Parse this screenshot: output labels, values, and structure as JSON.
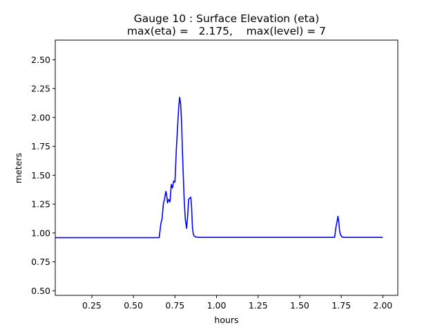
{
  "chart_data": {
    "type": "line",
    "title": "Gauge 10 : Surface Elevation (eta)",
    "subtitle": "max(eta) =   2.175,    max(level) = 7",
    "xlabel": "hours",
    "ylabel": "meters",
    "xlim": [
      0.03,
      2.09
    ],
    "ylim": [
      0.46,
      2.67
    ],
    "xticks": [
      0.25,
      0.5,
      0.75,
      1.0,
      1.25,
      1.5,
      1.75,
      2.0
    ],
    "xtick_labels": [
      "0.25",
      "0.50",
      "0.75",
      "1.00",
      "1.25",
      "1.50",
      "1.75",
      "2.00"
    ],
    "yticks": [
      0.5,
      0.75,
      1.0,
      1.25,
      1.5,
      1.75,
      2.0,
      2.25,
      2.5
    ],
    "ytick_labels": [
      "0.50",
      "0.75",
      "1.00",
      "1.25",
      "1.50",
      "1.75",
      "2.00",
      "2.25",
      "2.50"
    ],
    "grid": false,
    "series": [
      {
        "color": "#0000ff",
        "x": [
          0.03,
          0.3,
          0.6,
          0.655,
          0.665,
          0.672,
          0.68,
          0.688,
          0.695,
          0.7,
          0.705,
          0.712,
          0.72,
          0.728,
          0.735,
          0.742,
          0.75,
          0.758,
          0.765,
          0.772,
          0.778,
          0.784,
          0.79,
          0.795,
          0.8,
          0.805,
          0.812,
          0.82,
          0.826,
          0.832,
          0.838,
          0.845,
          0.85,
          0.855,
          0.86,
          0.865,
          0.875,
          0.9,
          1.0,
          1.25,
          1.5,
          1.71,
          1.718,
          1.725,
          1.73,
          1.735,
          1.74,
          1.745,
          1.755,
          1.77,
          1.8,
          2.0
        ],
        "y": [
          0.96,
          0.96,
          0.96,
          0.96,
          1.08,
          1.12,
          1.25,
          1.3,
          1.36,
          1.33,
          1.26,
          1.29,
          1.27,
          1.42,
          1.39,
          1.45,
          1.44,
          1.72,
          1.9,
          2.08,
          2.175,
          2.12,
          1.95,
          1.7,
          1.5,
          1.3,
          1.12,
          1.04,
          1.14,
          1.29,
          1.3,
          1.31,
          1.22,
          1.05,
          0.99,
          0.975,
          0.965,
          0.962,
          0.962,
          0.962,
          0.962,
          0.962,
          1.05,
          1.1,
          1.145,
          1.1,
          1.02,
          0.985,
          0.965,
          0.962,
          0.962,
          0.962
        ]
      }
    ]
  }
}
